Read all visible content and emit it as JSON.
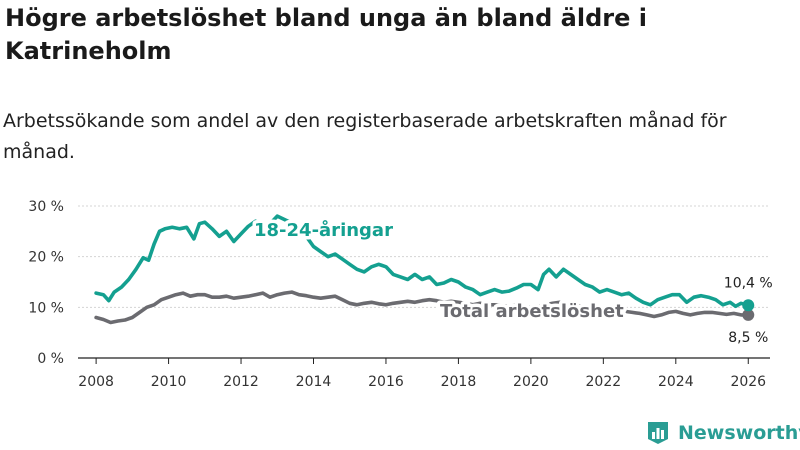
{
  "title": "Högre arbetslöshet bland unga än bland äldre i Katrineholm",
  "subtitle": "Arbetssökande som andel av den registerbaserade arbetskraften månad för månad.",
  "brand": {
    "name": "Newsworthy",
    "color": "#2a9d94"
  },
  "chart_data": {
    "type": "line",
    "x_ticks": [
      2008,
      2010,
      2012,
      2014,
      2016,
      2018,
      2020,
      2022,
      2024,
      2026
    ],
    "y_ticks": [
      0,
      10,
      20,
      30
    ],
    "y_tick_labels": [
      "0 %",
      "10 %",
      "20 %",
      "30 %"
    ],
    "xlim": [
      2007.5,
      2026.6
    ],
    "ylim": [
      0,
      30
    ],
    "grid": true,
    "series": [
      {
        "name": "18-24-åringar",
        "color": "#14a090",
        "end_label": "10,4 %",
        "points": [
          [
            2008.0,
            12.8
          ],
          [
            2008.2,
            12.5
          ],
          [
            2008.35,
            11.3
          ],
          [
            2008.5,
            13.0
          ],
          [
            2008.7,
            14.0
          ],
          [
            2008.9,
            15.5
          ],
          [
            2009.1,
            17.5
          ],
          [
            2009.3,
            19.8
          ],
          [
            2009.45,
            19.3
          ],
          [
            2009.6,
            22.5
          ],
          [
            2009.75,
            25.0
          ],
          [
            2009.9,
            25.5
          ],
          [
            2010.1,
            25.8
          ],
          [
            2010.3,
            25.5
          ],
          [
            2010.5,
            25.8
          ],
          [
            2010.7,
            23.5
          ],
          [
            2010.85,
            26.5
          ],
          [
            2011.0,
            26.8
          ],
          [
            2011.2,
            25.5
          ],
          [
            2011.4,
            24.0
          ],
          [
            2011.6,
            25.0
          ],
          [
            2011.8,
            23.0
          ],
          [
            2012.0,
            24.5
          ],
          [
            2012.2,
            26.0
          ],
          [
            2012.4,
            27.0
          ],
          [
            2012.6,
            25.5
          ],
          [
            2012.8,
            26.5
          ],
          [
            2013.0,
            28.0
          ],
          [
            2013.3,
            27.0
          ],
          [
            2013.6,
            26.0
          ],
          [
            2013.8,
            24.0
          ],
          [
            2014.0,
            22.0
          ],
          [
            2014.2,
            21.0
          ],
          [
            2014.4,
            20.0
          ],
          [
            2014.6,
            20.5
          ],
          [
            2014.8,
            19.5
          ],
          [
            2015.0,
            18.5
          ],
          [
            2015.2,
            17.5
          ],
          [
            2015.4,
            17.0
          ],
          [
            2015.6,
            18.0
          ],
          [
            2015.8,
            18.5
          ],
          [
            2016.0,
            18.0
          ],
          [
            2016.2,
            16.5
          ],
          [
            2016.4,
            16.0
          ],
          [
            2016.6,
            15.5
          ],
          [
            2016.8,
            16.5
          ],
          [
            2017.0,
            15.5
          ],
          [
            2017.2,
            16.0
          ],
          [
            2017.4,
            14.5
          ],
          [
            2017.6,
            14.8
          ],
          [
            2017.8,
            15.5
          ],
          [
            2018.0,
            15.0
          ],
          [
            2018.2,
            14.0
          ],
          [
            2018.4,
            13.5
          ],
          [
            2018.6,
            12.5
          ],
          [
            2018.8,
            13.0
          ],
          [
            2019.0,
            13.5
          ],
          [
            2019.2,
            13.0
          ],
          [
            2019.4,
            13.2
          ],
          [
            2019.6,
            13.8
          ],
          [
            2019.8,
            14.5
          ],
          [
            2020.0,
            14.5
          ],
          [
            2020.2,
            13.5
          ],
          [
            2020.35,
            16.5
          ],
          [
            2020.5,
            17.5
          ],
          [
            2020.7,
            16.0
          ],
          [
            2020.9,
            17.5
          ],
          [
            2021.1,
            16.5
          ],
          [
            2021.3,
            15.5
          ],
          [
            2021.5,
            14.5
          ],
          [
            2021.7,
            14.0
          ],
          [
            2021.9,
            13.0
          ],
          [
            2022.1,
            13.5
          ],
          [
            2022.3,
            13.0
          ],
          [
            2022.5,
            12.5
          ],
          [
            2022.7,
            12.8
          ],
          [
            2022.9,
            11.8
          ],
          [
            2023.1,
            11.0
          ],
          [
            2023.3,
            10.5
          ],
          [
            2023.5,
            11.5
          ],
          [
            2023.7,
            12.0
          ],
          [
            2023.9,
            12.5
          ],
          [
            2024.1,
            12.5
          ],
          [
            2024.3,
            11.0
          ],
          [
            2024.5,
            12.0
          ],
          [
            2024.7,
            12.3
          ],
          [
            2024.9,
            12.0
          ],
          [
            2025.1,
            11.5
          ],
          [
            2025.3,
            10.5
          ],
          [
            2025.5,
            11.0
          ],
          [
            2025.65,
            10.2
          ],
          [
            2025.8,
            10.8
          ],
          [
            2026.0,
            10.4
          ]
        ]
      },
      {
        "name": "Total arbetslöshet",
        "color": "#6b6b70",
        "end_label": "8,5 %",
        "points": [
          [
            2008.0,
            8.0
          ],
          [
            2008.2,
            7.6
          ],
          [
            2008.4,
            7.0
          ],
          [
            2008.6,
            7.3
          ],
          [
            2008.8,
            7.5
          ],
          [
            2009.0,
            8.0
          ],
          [
            2009.2,
            9.0
          ],
          [
            2009.4,
            10.0
          ],
          [
            2009.6,
            10.5
          ],
          [
            2009.8,
            11.5
          ],
          [
            2010.0,
            12.0
          ],
          [
            2010.2,
            12.5
          ],
          [
            2010.4,
            12.8
          ],
          [
            2010.6,
            12.2
          ],
          [
            2010.8,
            12.5
          ],
          [
            2011.0,
            12.5
          ],
          [
            2011.2,
            12.0
          ],
          [
            2011.4,
            12.0
          ],
          [
            2011.6,
            12.2
          ],
          [
            2011.8,
            11.8
          ],
          [
            2012.0,
            12.0
          ],
          [
            2012.2,
            12.2
          ],
          [
            2012.4,
            12.5
          ],
          [
            2012.6,
            12.8
          ],
          [
            2012.8,
            12.0
          ],
          [
            2013.0,
            12.5
          ],
          [
            2013.2,
            12.8
          ],
          [
            2013.4,
            13.0
          ],
          [
            2013.6,
            12.5
          ],
          [
            2013.8,
            12.3
          ],
          [
            2014.0,
            12.0
          ],
          [
            2014.2,
            11.8
          ],
          [
            2014.4,
            12.0
          ],
          [
            2014.6,
            12.2
          ],
          [
            2014.8,
            11.5
          ],
          [
            2015.0,
            10.8
          ],
          [
            2015.2,
            10.5
          ],
          [
            2015.4,
            10.8
          ],
          [
            2015.6,
            11.0
          ],
          [
            2015.8,
            10.7
          ],
          [
            2016.0,
            10.5
          ],
          [
            2016.2,
            10.8
          ],
          [
            2016.4,
            11.0
          ],
          [
            2016.6,
            11.2
          ],
          [
            2016.8,
            11.0
          ],
          [
            2017.0,
            11.3
          ],
          [
            2017.2,
            11.5
          ],
          [
            2017.4,
            11.3
          ],
          [
            2017.6,
            11.0
          ],
          [
            2017.8,
            11.2
          ],
          [
            2018.0,
            11.0
          ],
          [
            2018.2,
            10.8
          ],
          [
            2018.4,
            10.5
          ],
          [
            2018.6,
            10.8
          ],
          [
            2018.8,
            10.5
          ],
          [
            2019.0,
            10.5
          ],
          [
            2019.2,
            10.3
          ],
          [
            2019.4,
            10.2
          ],
          [
            2019.6,
            10.5
          ],
          [
            2019.8,
            10.2
          ],
          [
            2020.0,
            10.0
          ],
          [
            2020.2,
            10.2
          ],
          [
            2020.4,
            10.5
          ],
          [
            2020.6,
            10.8
          ],
          [
            2020.8,
            11.0
          ],
          [
            2021.0,
            10.8
          ],
          [
            2021.2,
            10.5
          ],
          [
            2021.4,
            10.2
          ],
          [
            2021.6,
            10.0
          ],
          [
            2021.8,
            9.8
          ],
          [
            2022.0,
            9.5
          ],
          [
            2022.2,
            9.3
          ],
          [
            2022.4,
            9.0
          ],
          [
            2022.6,
            9.2
          ],
          [
            2022.8,
            9.0
          ],
          [
            2023.0,
            8.8
          ],
          [
            2023.2,
            8.5
          ],
          [
            2023.4,
            8.2
          ],
          [
            2023.6,
            8.5
          ],
          [
            2023.8,
            9.0
          ],
          [
            2024.0,
            9.2
          ],
          [
            2024.2,
            8.8
          ],
          [
            2024.4,
            8.5
          ],
          [
            2024.6,
            8.8
          ],
          [
            2024.8,
            9.0
          ],
          [
            2025.0,
            9.0
          ],
          [
            2025.2,
            8.8
          ],
          [
            2025.4,
            8.6
          ],
          [
            2025.6,
            8.8
          ],
          [
            2025.8,
            8.5
          ],
          [
            2026.0,
            8.5
          ]
        ]
      }
    ]
  }
}
